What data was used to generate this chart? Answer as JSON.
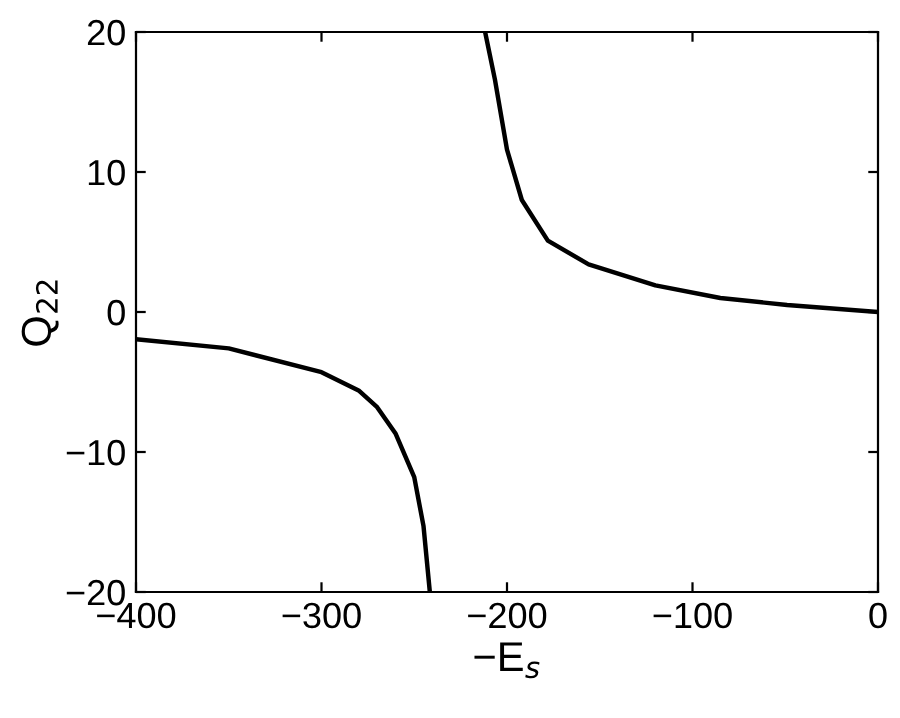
{
  "chart_data": {
    "type": "line",
    "xlabel": "−E$_{s}$",
    "ylabel": "Q$_{22}$",
    "series": [
      {
        "color": "#000000",
        "x": [
          -400,
          -350,
          -300,
          -280,
          -270,
          -260,
          -250,
          -245,
          -241.6
        ],
        "values": [
          -1.95,
          -2.6,
          -4.3,
          -5.6,
          -6.8,
          -8.7,
          -11.8,
          -15.3,
          -20
        ]
      },
      {
        "color": "#000000",
        "x": [
          -211.8,
          -206.5,
          -200,
          -192,
          -178,
          -156,
          -120,
          -85,
          -49,
          0
        ],
        "values": [
          20,
          16.6,
          11.6,
          8.0,
          5.1,
          3.4,
          1.9,
          1.0,
          0.5,
          0
        ]
      }
    ],
    "xlim": [
      -400,
      0
    ],
    "ylim": [
      -20,
      20
    ],
    "xticks": [
      {
        "value": -400,
        "label": "−400"
      },
      {
        "value": -300,
        "label": "−300"
      },
      {
        "value": -200,
        "label": "−200"
      },
      {
        "value": -100,
        "label": "−100"
      },
      0
    ],
    "yticks": [
      {
        "value": -20,
        "label": "−20"
      },
      {
        "value": -10,
        "label": "−10"
      },
      0,
      10,
      20
    ],
    "grid": false,
    "legend": false
  }
}
